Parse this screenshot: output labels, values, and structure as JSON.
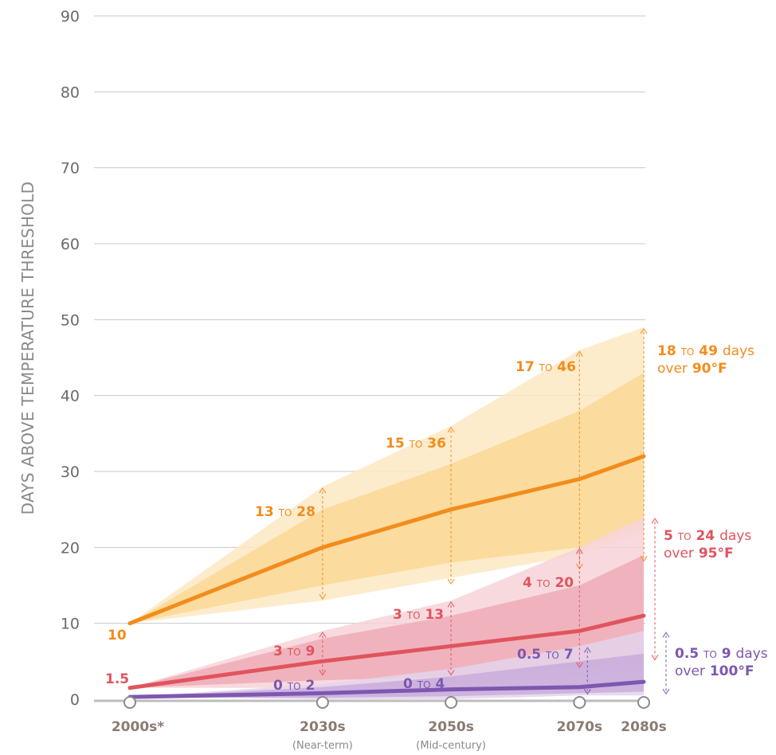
{
  "chart_data": {
    "type": "area",
    "title": "",
    "ylabel": "DAYS ABOVE TEMPERATURE THRESHOLD",
    "ylim": [
      0,
      90
    ],
    "yticks": [
      0,
      10,
      20,
      30,
      40,
      50,
      60,
      70,
      80,
      90
    ],
    "grid": true,
    "x_positions": [
      2000,
      2030,
      2050,
      2070,
      2080
    ],
    "x_labels": [
      "2000s*",
      "2030s",
      "2050s",
      "2070s",
      "2080s"
    ],
    "x_sublabels": [
      "",
      "(Near-term)",
      "(Mid-century)",
      "",
      ""
    ],
    "series": [
      {
        "name": "90°F",
        "color": "#f28c1c",
        "band_outer_color": "#fde9c3",
        "band_inner_color": "#fbd68f",
        "values": [
          10,
          20,
          25,
          29,
          32
        ],
        "outer_low": [
          10,
          13,
          16,
          19,
          22
        ],
        "outer_high": [
          10,
          28,
          36,
          46,
          49
        ],
        "inner_low": [
          10,
          15,
          18,
          20,
          23
        ],
        "inner_high": [
          10,
          25,
          31,
          38,
          43
        ],
        "range_x": [
          2030,
          2050,
          2070,
          2080
        ],
        "range_low": [
          13,
          15,
          17,
          18
        ],
        "range_high": [
          28,
          36,
          46,
          49
        ]
      },
      {
        "name": "95°F",
        "color": "#e0545e",
        "band_outer_color": "#f7d3d8",
        "band_inner_color": "#eda5b1",
        "values": [
          1.5,
          5,
          7,
          9,
          11
        ],
        "outer_low": [
          1.5,
          1.5,
          2,
          3,
          4
        ],
        "outer_high": [
          1.5,
          9,
          13,
          20,
          24
        ],
        "inner_low": [
          1.5,
          2.5,
          3,
          4,
          5
        ],
        "inner_high": [
          1.5,
          8,
          11,
          15,
          19
        ],
        "range_x": [
          2030,
          2050,
          2070,
          2080
        ],
        "range_low": [
          3,
          3,
          4,
          5
        ],
        "range_high": [
          9,
          13,
          20,
          24
        ]
      },
      {
        "name": "100°F",
        "color": "#7d57b0",
        "band_outer_color": "#e4d4ec",
        "band_inner_color": "#c6a5d8",
        "values": [
          0.3,
          0.8,
          1.3,
          1.6,
          2.3
        ],
        "outer_low": [
          0.3,
          0,
          0,
          0.5,
          0.5
        ],
        "outer_high": [
          0.3,
          2,
          4,
          7,
          9
        ],
        "inner_low": [
          0.3,
          0.2,
          0.4,
          0.8,
          1
        ],
        "inner_high": [
          0.3,
          1.6,
          3,
          5,
          6
        ],
        "range_x": [
          2070,
          2080
        ],
        "range_low": [
          0.5,
          0.5
        ],
        "range_high": [
          7,
          9
        ]
      }
    ]
  },
  "annotations": {
    "orange": {
      "start": "10",
      "r2030": {
        "lo": "13",
        "sep": "TO",
        "hi": "28"
      },
      "r2050": {
        "lo": "15",
        "sep": "TO",
        "hi": "36"
      },
      "r2070": {
        "lo": "17",
        "sep": "TO",
        "hi": "46"
      },
      "r2080": {
        "lo": "18",
        "sep": "TO",
        "hi": "49",
        "unit": "days",
        "line2_pre": "over",
        "line2_val": "90°F"
      }
    },
    "red": {
      "start": "1.5",
      "r2030": {
        "lo": "3",
        "sep": "TO",
        "hi": "9"
      },
      "r2050": {
        "lo": "3",
        "sep": "TO",
        "hi": "13"
      },
      "r2070": {
        "lo": "4",
        "sep": "TO",
        "hi": "20"
      },
      "r2080": {
        "lo": "5",
        "sep": "TO",
        "hi": "24",
        "unit": "days",
        "line2_pre": "over",
        "line2_val": "95°F"
      }
    },
    "purple": {
      "r2030": {
        "lo": "0",
        "sep": "TO",
        "hi": "2"
      },
      "r2050": {
        "lo": "0",
        "sep": "TO",
        "hi": "4"
      },
      "r2070": {
        "lo": "0.5",
        "sep": "TO",
        "hi": "7"
      },
      "r2080": {
        "lo": "0.5",
        "sep": "TO",
        "hi": "9",
        "unit": "days",
        "line2_pre": "over",
        "line2_val": "100°F"
      }
    }
  }
}
